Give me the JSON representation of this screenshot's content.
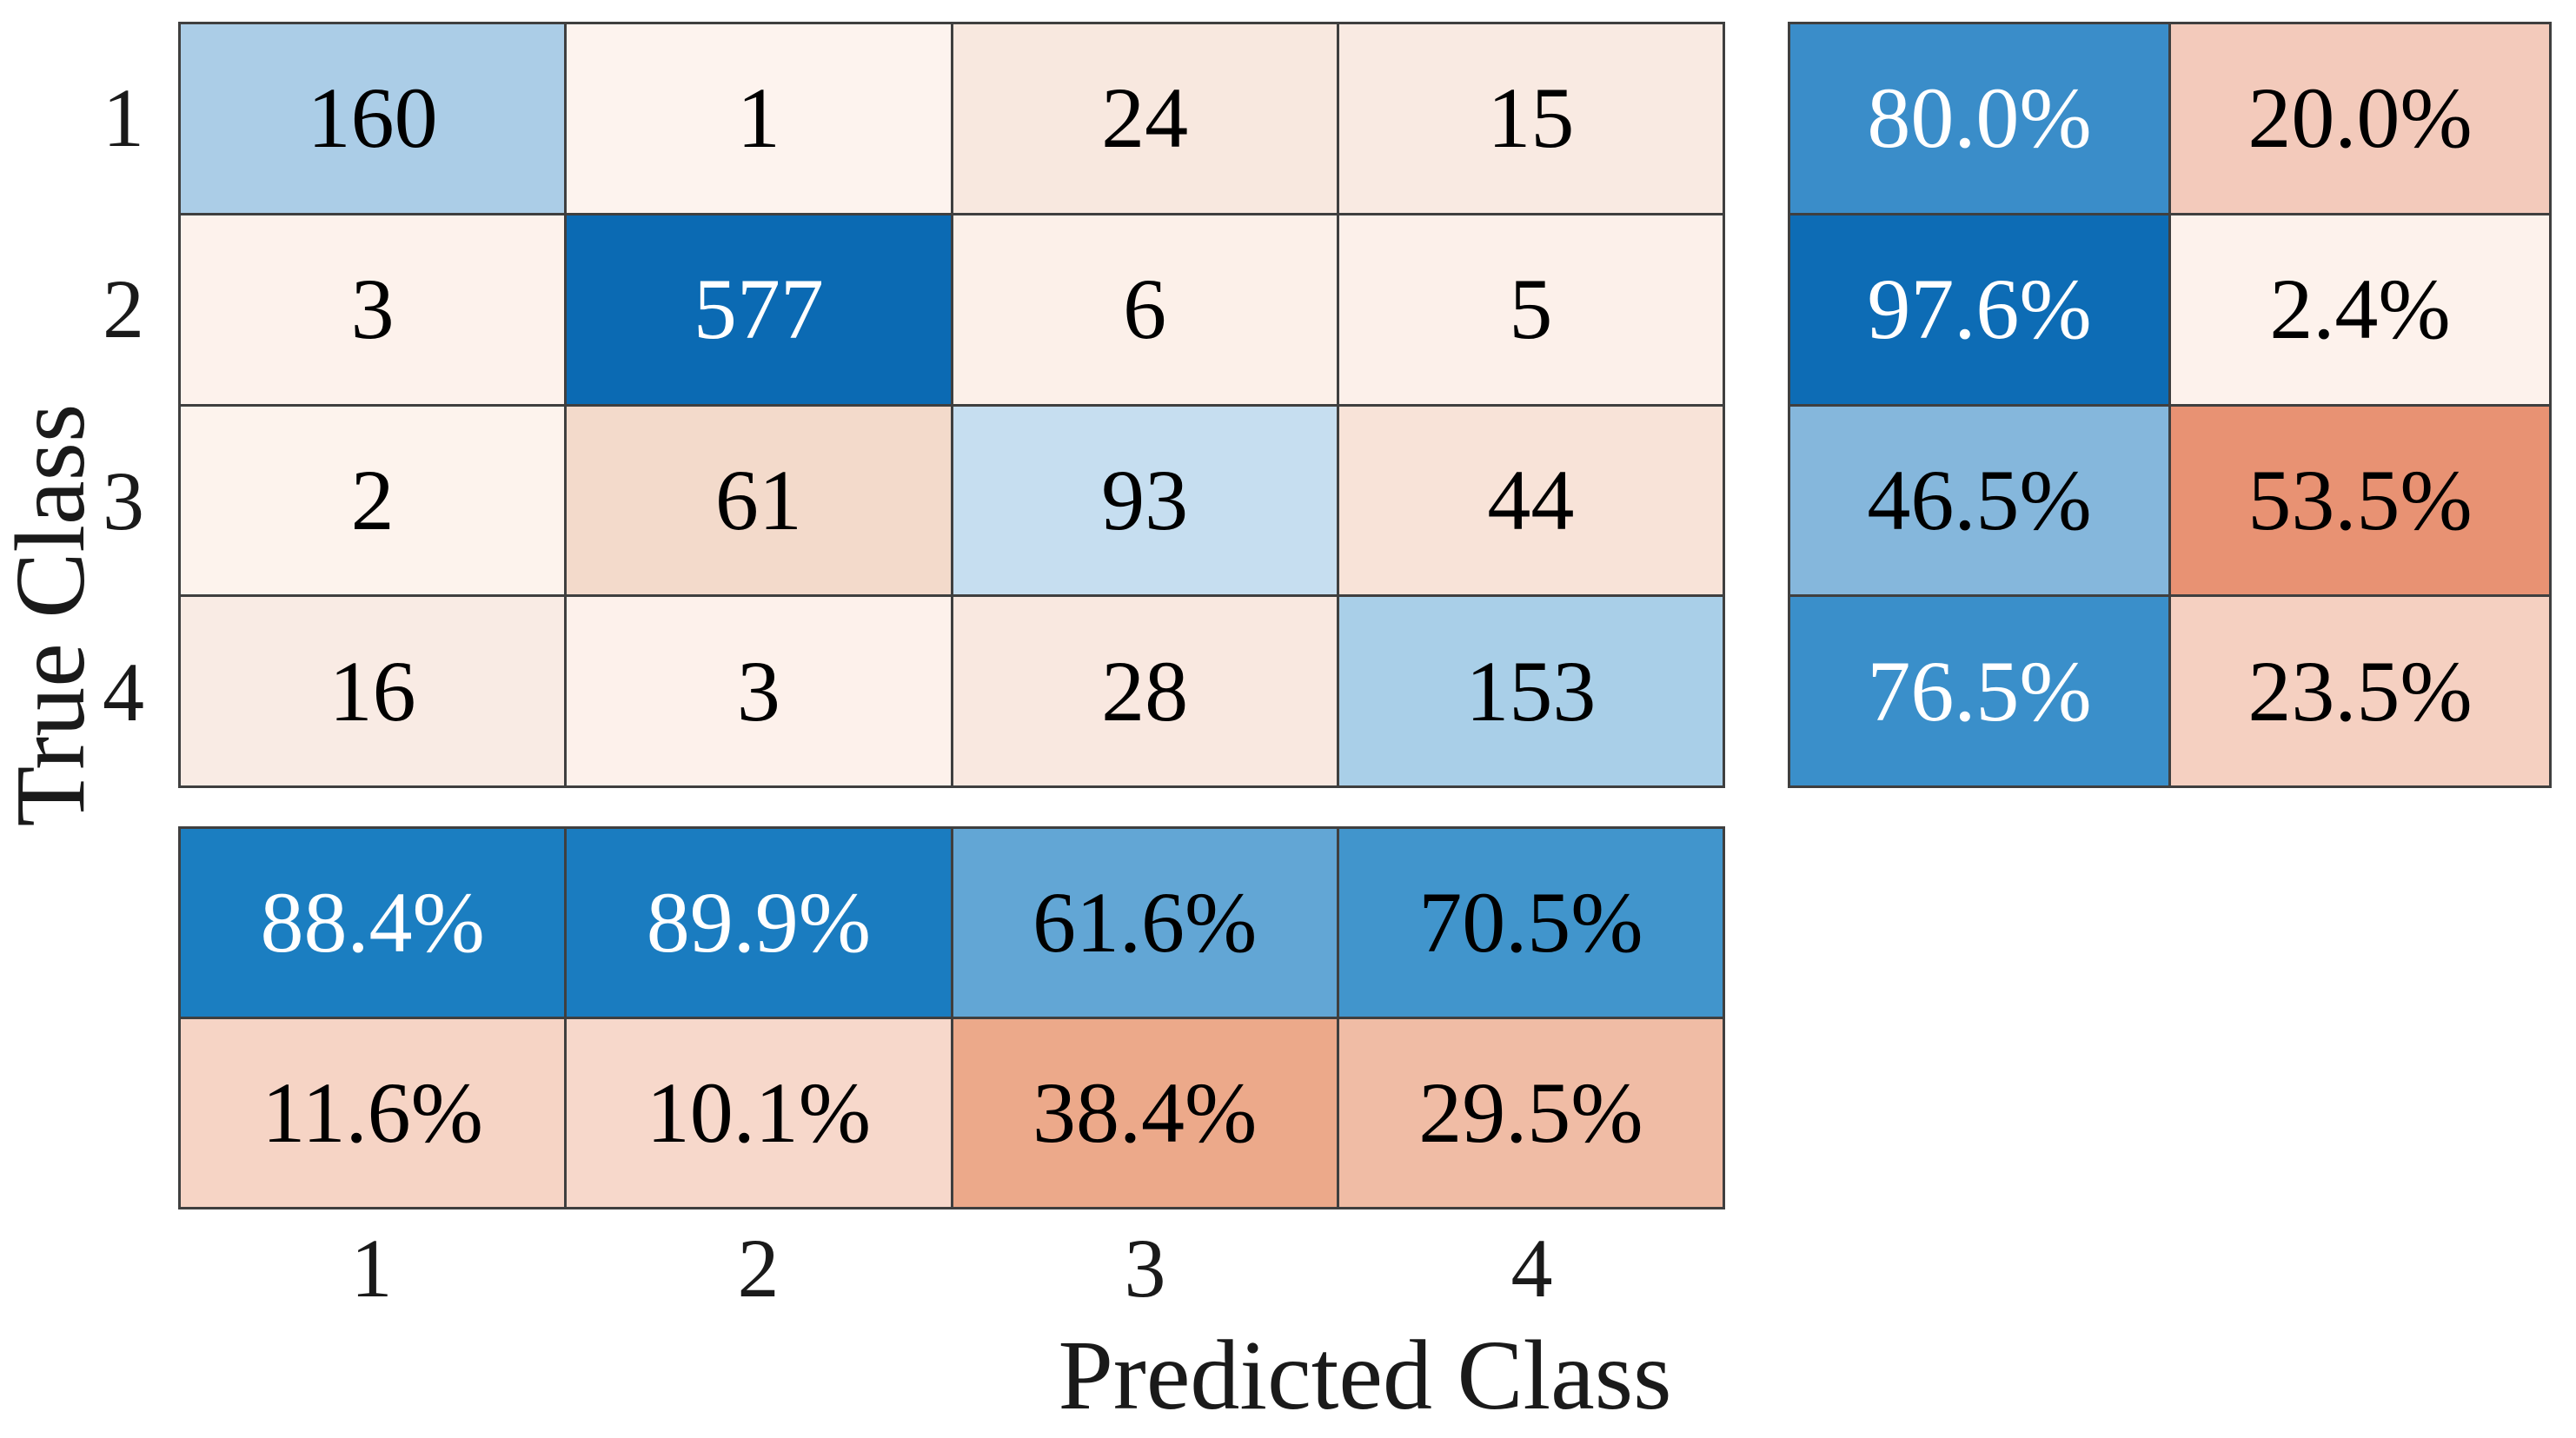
{
  "figure": {
    "background": "#ffffff",
    "grid_line_color": "#3f3f3f",
    "tick_text_color": "#1a1a1a",
    "accent_blue_max": "#0b6ab3",
    "accent_red_max": "#e89273"
  },
  "axes": {
    "xlabel": "Predicted Class",
    "ylabel": "True Class",
    "x_ticks": [
      "1",
      "2",
      "3",
      "4"
    ],
    "y_ticks": [
      "1",
      "2",
      "3",
      "4"
    ]
  },
  "chart_data": {
    "type": "heatmap",
    "subtype": "confusion_matrix",
    "title": "",
    "xlabel": "Predicted Class",
    "ylabel": "True Class",
    "classes": [
      "1",
      "2",
      "3",
      "4"
    ],
    "matrix": [
      [
        160,
        1,
        24,
        15
      ],
      [
        3,
        577,
        6,
        5
      ],
      [
        2,
        61,
        93,
        44
      ],
      [
        16,
        3,
        28,
        153
      ]
    ],
    "row_summary_percent": [
      [
        80.0,
        20.0
      ],
      [
        97.6,
        2.4
      ],
      [
        46.5,
        53.5
      ],
      [
        76.5,
        23.5
      ]
    ],
    "column_summary_percent": [
      [
        88.4,
        89.9,
        61.6,
        70.5
      ],
      [
        11.6,
        10.1,
        38.4,
        29.5
      ]
    ],
    "legend": "none",
    "grid": "on",
    "colormap_note": "blue = correct/agreement intensity, red-orange = error intensity"
  },
  "cells": {
    "main": [
      {
        "value": "160",
        "bg": "#abcde7",
        "fg": "#000000"
      },
      {
        "value": "1",
        "bg": "#fdf3ee",
        "fg": "#000000"
      },
      {
        "value": "24",
        "bg": "#f8e8df",
        "fg": "#000000"
      },
      {
        "value": "15",
        "bg": "#f9eae2",
        "fg": "#000000"
      },
      {
        "value": "3",
        "bg": "#fdf2ec",
        "fg": "#000000"
      },
      {
        "value": "577",
        "bg": "#0b6ab3",
        "fg": "#ffffff"
      },
      {
        "value": "6",
        "bg": "#fcf0e9",
        "fg": "#000000"
      },
      {
        "value": "5",
        "bg": "#fcf0ea",
        "fg": "#000000"
      },
      {
        "value": "2",
        "bg": "#fdf3ed",
        "fg": "#000000"
      },
      {
        "value": "61",
        "bg": "#f3dacb",
        "fg": "#000000"
      },
      {
        "value": "93",
        "bg": "#c6def0",
        "fg": "#000000"
      },
      {
        "value": "44",
        "bg": "#f8e3d8",
        "fg": "#000000"
      },
      {
        "value": "16",
        "bg": "#f9ebe4",
        "fg": "#000000"
      },
      {
        "value": "3",
        "bg": "#fdf1eb",
        "fg": "#000000"
      },
      {
        "value": "28",
        "bg": "#f9e8e0",
        "fg": "#000000"
      },
      {
        "value": "153",
        "bg": "#a9cfe8",
        "fg": "#000000"
      }
    ],
    "row_summary": [
      {
        "value": "80.0%",
        "bg": "#3a8dc9",
        "fg": "#ffffff"
      },
      {
        "value": "20.0%",
        "bg": "#f3cabb",
        "fg": "#000000"
      },
      {
        "value": "97.6%",
        "bg": "#0d6cb5",
        "fg": "#ffffff"
      },
      {
        "value": "2.4%",
        "bg": "#fdf2ec",
        "fg": "#000000"
      },
      {
        "value": "46.5%",
        "bg": "#85b7dc",
        "fg": "#000000"
      },
      {
        "value": "53.5%",
        "bg": "#e89273",
        "fg": "#000000"
      },
      {
        "value": "76.5%",
        "bg": "#3a8fca",
        "fg": "#ffffff"
      },
      {
        "value": "23.5%",
        "bg": "#f5d0c1",
        "fg": "#000000"
      }
    ],
    "column_summary": [
      {
        "value": "88.4%",
        "bg": "#1b7ec1",
        "fg": "#ffffff"
      },
      {
        "value": "89.9%",
        "bg": "#1a7cc0",
        "fg": "#ffffff"
      },
      {
        "value": "61.6%",
        "bg": "#62a6d5",
        "fg": "#000000"
      },
      {
        "value": "70.5%",
        "bg": "#4195cc",
        "fg": "#000000"
      },
      {
        "value": "11.6%",
        "bg": "#f6d4c5",
        "fg": "#000000"
      },
      {
        "value": "10.1%",
        "bg": "#f7d8cb",
        "fg": "#000000"
      },
      {
        "value": "38.4%",
        "bg": "#eca98a",
        "fg": "#000000"
      },
      {
        "value": "29.5%",
        "bg": "#f0bca5",
        "fg": "#000000"
      }
    ]
  }
}
